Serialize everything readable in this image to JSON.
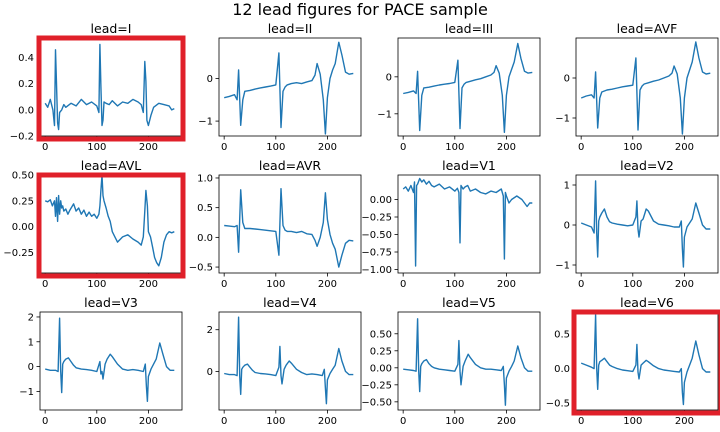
{
  "figure": {
    "title": "12 lead figures for PACE sample",
    "line_color": "#1f77b4",
    "highlight_color": "#e0202a"
  },
  "chart_data": [
    {
      "type": "line",
      "title": "lead=I",
      "highlighted": true,
      "xlim": [
        -10,
        265
      ],
      "ylim": [
        -0.2,
        0.55
      ],
      "xticks": [
        0,
        100,
        200
      ],
      "yticks": [
        -0.2,
        0.0,
        0.2,
        0.4
      ],
      "ytick_labels": [
        "−0.2",
        "0.0",
        "0.2",
        "0.4"
      ],
      "x": [
        0,
        5,
        10,
        15,
        18,
        20,
        22,
        24,
        26,
        28,
        32,
        36,
        40,
        50,
        60,
        70,
        80,
        90,
        100,
        104,
        106,
        108,
        110,
        112,
        114,
        118,
        124,
        130,
        140,
        150,
        160,
        170,
        180,
        186,
        190,
        193,
        195,
        197,
        200,
        205,
        210,
        220,
        230,
        240,
        245,
        250
      ],
      "y": [
        0.05,
        0.02,
        0.08,
        0.0,
        -0.12,
        0.46,
        0.2,
        -0.1,
        -0.15,
        -0.02,
        0.0,
        0.04,
        0.02,
        0.05,
        0.03,
        0.08,
        0.04,
        0.06,
        0.03,
        -0.02,
        0.5,
        0.18,
        -0.12,
        -0.08,
        0.06,
        0.05,
        0.04,
        0.07,
        0.03,
        0.06,
        0.05,
        0.08,
        0.06,
        0.04,
        -0.02,
        0.37,
        0.22,
        -0.08,
        -0.12,
        -0.04,
        0.02,
        0.05,
        0.04,
        0.03,
        0.0,
        0.01
      ]
    },
    {
      "type": "line",
      "title": "lead=II",
      "highlighted": false,
      "xlim": [
        -10,
        265
      ],
      "ylim": [
        -1.35,
        0.95
      ],
      "xticks": [
        0,
        100,
        200
      ],
      "yticks": [
        -1,
        0
      ],
      "ytick_labels": [
        "−1",
        "0"
      ],
      "x": [
        0,
        10,
        20,
        25,
        28,
        32,
        36,
        40,
        50,
        60,
        70,
        80,
        90,
        100,
        106,
        110,
        114,
        118,
        122,
        130,
        140,
        150,
        160,
        170,
        176,
        180,
        186,
        192,
        196,
        200,
        205,
        210,
        215,
        222,
        228,
        235,
        242,
        250
      ],
      "y": [
        -0.45,
        -0.42,
        -0.38,
        -0.5,
        0.2,
        -1.1,
        -0.5,
        -0.3,
        -0.28,
        -0.25,
        -0.22,
        -0.2,
        -0.18,
        -0.15,
        0.6,
        -1.15,
        -0.3,
        -0.2,
        -0.15,
        -0.12,
        -0.1,
        -0.12,
        -0.08,
        -0.05,
        0.08,
        0.35,
        0.1,
        -0.5,
        -1.3,
        -0.45,
        0.0,
        0.2,
        0.35,
        0.85,
        0.55,
        0.15,
        0.1,
        0.12
      ]
    },
    {
      "type": "line",
      "title": "lead=III",
      "highlighted": false,
      "xlim": [
        -10,
        265
      ],
      "ylim": [
        -1.6,
        1.05
      ],
      "xticks": [
        0,
        100,
        200
      ],
      "yticks": [
        -1,
        0
      ],
      "ytick_labels": [
        "−1",
        "0"
      ],
      "x": [
        0,
        10,
        20,
        25,
        28,
        32,
        36,
        40,
        50,
        60,
        70,
        80,
        90,
        100,
        106,
        110,
        114,
        118,
        122,
        130,
        140,
        150,
        160,
        170,
        176,
        180,
        186,
        192,
        196,
        200,
        205,
        210,
        215,
        222,
        228,
        235,
        242,
        250
      ],
      "y": [
        -0.45,
        -0.42,
        -0.38,
        -0.45,
        0.15,
        -1.45,
        -0.5,
        -0.3,
        -0.28,
        -0.25,
        -0.22,
        -0.2,
        -0.18,
        -0.15,
        0.45,
        -1.4,
        -0.3,
        -0.2,
        -0.15,
        -0.12,
        -0.08,
        -0.05,
        0.0,
        0.05,
        0.12,
        0.3,
        0.1,
        -0.5,
        -1.5,
        -0.5,
        0.0,
        0.2,
        0.4,
        0.9,
        0.5,
        0.15,
        0.1,
        0.12
      ]
    },
    {
      "type": "line",
      "title": "lead=AVF",
      "highlighted": false,
      "xlim": [
        -10,
        265
      ],
      "ylim": [
        -1.45,
        1.0
      ],
      "xticks": [
        0,
        100,
        200
      ],
      "yticks": [
        -1,
        0
      ],
      "ytick_labels": [
        "−1",
        "0"
      ],
      "x": [
        0,
        10,
        20,
        25,
        28,
        32,
        36,
        40,
        50,
        60,
        70,
        80,
        90,
        100,
        106,
        110,
        114,
        118,
        122,
        130,
        140,
        150,
        160,
        170,
        176,
        180,
        186,
        192,
        196,
        200,
        205,
        210,
        215,
        222,
        228,
        235,
        242,
        250
      ],
      "y": [
        -0.5,
        -0.45,
        -0.42,
        -0.5,
        0.15,
        -1.25,
        -0.5,
        -0.35,
        -0.3,
        -0.28,
        -0.25,
        -0.22,
        -0.2,
        -0.18,
        0.5,
        -1.3,
        -0.3,
        -0.2,
        -0.15,
        -0.12,
        -0.08,
        -0.05,
        0.0,
        0.05,
        0.12,
        0.3,
        0.1,
        -0.5,
        -1.4,
        -0.5,
        0.0,
        0.2,
        0.4,
        0.9,
        0.5,
        0.15,
        0.1,
        0.12
      ]
    },
    {
      "type": "line",
      "title": "lead=AVL",
      "highlighted": true,
      "xlim": [
        -10,
        265
      ],
      "ylim": [
        -0.45,
        0.5
      ],
      "xticks": [
        0,
        100,
        200
      ],
      "yticks": [
        -0.25,
        0.0,
        0.25,
        0.5
      ],
      "ytick_labels": [
        "−0.25",
        "0.00",
        "0.25",
        "0.50"
      ],
      "x": [
        0,
        5,
        10,
        14,
        18,
        20,
        22,
        24,
        26,
        28,
        30,
        32,
        34,
        36,
        40,
        44,
        48,
        55,
        60,
        65,
        70,
        75,
        80,
        85,
        90,
        95,
        100,
        104,
        106,
        108,
        110,
        112,
        114,
        118,
        122,
        126,
        130,
        135,
        140,
        150,
        160,
        170,
        180,
        186,
        190,
        193,
        195,
        198,
        200,
        204,
        208,
        212,
        216,
        220,
        225,
        230,
        235,
        240,
        245,
        250
      ],
      "y": [
        0.25,
        0.24,
        0.26,
        0.2,
        0.25,
        0.1,
        0.28,
        0.05,
        0.3,
        0.12,
        0.25,
        0.18,
        0.2,
        0.15,
        0.17,
        0.12,
        0.16,
        0.22,
        0.15,
        0.18,
        0.12,
        0.16,
        0.1,
        0.14,
        0.1,
        0.12,
        0.08,
        0.12,
        0.2,
        0.35,
        0.5,
        0.3,
        0.25,
        0.18,
        0.1,
        0.05,
        -0.05,
        -0.1,
        -0.15,
        -0.1,
        -0.08,
        -0.12,
        -0.15,
        -0.18,
        -0.1,
        0.15,
        0.35,
        0.2,
        -0.05,
        -0.1,
        -0.2,
        -0.3,
        -0.35,
        -0.38,
        -0.3,
        -0.15,
        -0.08,
        -0.05,
        -0.06,
        -0.05
      ]
    },
    {
      "type": "line",
      "title": "lead=AVR",
      "highlighted": false,
      "xlim": [
        -10,
        265
      ],
      "ylim": [
        -0.6,
        1.05
      ],
      "xticks": [
        0,
        100,
        200
      ],
      "yticks": [
        -0.5,
        0.0,
        0.5,
        1.0
      ],
      "ytick_labels": [
        "−0.5",
        "0.0",
        "0.5",
        "1.0"
      ],
      "x": [
        0,
        10,
        20,
        25,
        28,
        32,
        36,
        40,
        50,
        60,
        70,
        80,
        90,
        100,
        106,
        110,
        114,
        118,
        122,
        130,
        140,
        150,
        160,
        170,
        176,
        180,
        186,
        192,
        196,
        200,
        205,
        210,
        215,
        222,
        228,
        235,
        242,
        250
      ],
      "y": [
        0.2,
        0.19,
        0.18,
        0.2,
        -0.25,
        0.8,
        0.25,
        0.15,
        0.15,
        0.14,
        0.13,
        0.12,
        0.11,
        0.1,
        -0.3,
        0.82,
        0.2,
        0.12,
        0.1,
        0.1,
        0.08,
        0.1,
        0.06,
        0.05,
        -0.05,
        -0.15,
        0.0,
        0.25,
        0.75,
        0.3,
        0.05,
        -0.1,
        -0.2,
        -0.5,
        -0.3,
        -0.1,
        -0.05,
        -0.06
      ]
    },
    {
      "type": "line",
      "title": "lead=V1",
      "highlighted": false,
      "xlim": [
        -10,
        265
      ],
      "ylim": [
        -1.05,
        0.35
      ],
      "xticks": [
        0,
        100,
        200
      ],
      "yticks": [
        -1.0,
        -0.75,
        -0.5,
        -0.25,
        0.0
      ],
      "ytick_labels": [
        "−1.00",
        "−0.75",
        "−0.50",
        "−0.25",
        "0.00"
      ],
      "x": [
        0,
        5,
        10,
        15,
        20,
        22,
        24,
        26,
        28,
        32,
        36,
        40,
        45,
        50,
        55,
        60,
        70,
        80,
        90,
        100,
        105,
        108,
        110,
        112,
        116,
        120,
        125,
        130,
        140,
        150,
        160,
        170,
        180,
        190,
        194,
        196,
        198,
        200,
        205,
        210,
        220,
        230,
        240,
        245,
        250
      ],
      "y": [
        0.15,
        0.18,
        0.12,
        0.2,
        0.1,
        0.25,
        -0.95,
        0.2,
        0.22,
        0.3,
        0.25,
        0.28,
        0.22,
        0.26,
        0.2,
        0.18,
        0.22,
        0.15,
        0.18,
        0.12,
        0.16,
        0.1,
        -0.62,
        0.2,
        0.15,
        0.18,
        0.2,
        0.12,
        0.15,
        0.1,
        0.08,
        0.12,
        0.1,
        0.15,
        0.05,
        -0.85,
        0.1,
        0.05,
        -0.05,
        0.0,
        0.05,
        0.0,
        -0.1,
        -0.05,
        -0.05
      ]
    },
    {
      "type": "line",
      "title": "lead=V2",
      "highlighted": false,
      "xlim": [
        -10,
        265
      ],
      "ylim": [
        -1.2,
        1.25
      ],
      "xticks": [
        0,
        100,
        200
      ],
      "yticks": [
        -1,
        0,
        1
      ],
      "ytick_labels": [
        "−1",
        "0",
        "1"
      ],
      "x": [
        0,
        10,
        20,
        25,
        28,
        30,
        32,
        34,
        36,
        40,
        45,
        50,
        55,
        60,
        70,
        80,
        90,
        100,
        106,
        108,
        110,
        112,
        116,
        120,
        126,
        130,
        140,
        150,
        160,
        170,
        180,
        190,
        194,
        196,
        198,
        200,
        205,
        210,
        215,
        222,
        228,
        235,
        242,
        250
      ],
      "y": [
        0.05,
        0.0,
        -0.05,
        -0.2,
        1.1,
        -0.2,
        -0.8,
        0.1,
        0.2,
        0.3,
        0.4,
        0.2,
        0.08,
        0.05,
        0.02,
        0.0,
        -0.02,
        0.0,
        0.2,
        0.6,
        -0.1,
        -0.3,
        0.1,
        0.15,
        0.4,
        0.35,
        0.1,
        0.02,
        0.0,
        -0.02,
        -0.05,
        -0.05,
        0.1,
        -0.6,
        -1.05,
        -0.3,
        -0.05,
        0.05,
        0.15,
        0.55,
        0.3,
        0.0,
        -0.1,
        -0.1
      ]
    },
    {
      "type": "line",
      "title": "lead=V3",
      "highlighted": false,
      "xlim": [
        -10,
        265
      ],
      "ylim": [
        -1.75,
        2.2
      ],
      "xticks": [
        0,
        100,
        200
      ],
      "yticks": [
        -1,
        0,
        1,
        2
      ],
      "ytick_labels": [
        "−1",
        "0",
        "1",
        "2"
      ],
      "x": [
        0,
        10,
        20,
        25,
        28,
        30,
        32,
        34,
        36,
        40,
        45,
        50,
        55,
        60,
        70,
        80,
        90,
        100,
        106,
        108,
        110,
        112,
        116,
        120,
        126,
        130,
        140,
        150,
        160,
        170,
        180,
        190,
        194,
        196,
        198,
        200,
        205,
        210,
        215,
        222,
        228,
        235,
        242,
        250
      ],
      "y": [
        -0.1,
        -0.15,
        -0.15,
        -0.2,
        1.95,
        -0.2,
        -1.05,
        0.1,
        0.2,
        0.3,
        0.35,
        0.2,
        0.05,
        -0.05,
        -0.1,
        -0.12,
        -0.15,
        -0.2,
        0.2,
        -0.3,
        -0.2,
        -0.5,
        0.1,
        0.3,
        0.5,
        0.4,
        0.1,
        -0.1,
        -0.15,
        -0.12,
        -0.15,
        -0.2,
        0.1,
        -0.8,
        -1.4,
        -0.4,
        -0.1,
        0.1,
        0.3,
        0.95,
        0.5,
        0.0,
        -0.15,
        -0.15
      ]
    },
    {
      "type": "line",
      "title": "lead=V4",
      "highlighted": false,
      "xlim": [
        -10,
        265
      ],
      "ylim": [
        -1.85,
        2.85
      ],
      "xticks": [
        0,
        100,
        200
      ],
      "yticks": [
        0,
        2
      ],
      "ytick_labels": [
        "0",
        "2"
      ],
      "x": [
        0,
        10,
        20,
        25,
        28,
        30,
        32,
        34,
        36,
        40,
        45,
        50,
        55,
        60,
        70,
        80,
        90,
        100,
        106,
        108,
        110,
        112,
        116,
        120,
        126,
        130,
        140,
        150,
        160,
        170,
        180,
        190,
        194,
        196,
        198,
        200,
        205,
        210,
        215,
        222,
        228,
        235,
        242,
        250
      ],
      "y": [
        -0.1,
        -0.15,
        -0.15,
        -0.2,
        2.6,
        -0.2,
        -1.1,
        0.1,
        0.2,
        0.3,
        0.35,
        0.2,
        0.05,
        -0.05,
        -0.1,
        -0.12,
        -0.15,
        -0.2,
        0.2,
        1.2,
        -0.2,
        -0.6,
        0.1,
        0.3,
        0.5,
        0.4,
        0.1,
        -0.05,
        -0.15,
        -0.12,
        -0.15,
        -0.2,
        0.1,
        -0.8,
        -1.55,
        -0.4,
        -0.1,
        0.1,
        0.3,
        1.1,
        0.5,
        0.0,
        -0.15,
        -0.15
      ]
    },
    {
      "type": "line",
      "title": "lead=V5",
      "highlighted": false,
      "xlim": [
        -10,
        265
      ],
      "ylim": [
        -0.62,
        0.82
      ],
      "xticks": [
        0,
        100,
        200
      ],
      "yticks": [
        -0.5,
        -0.25,
        0.0,
        0.25,
        0.5
      ],
      "ytick_labels": [
        "−0.50",
        "−0.25",
        "0.00",
        "0.25",
        "0.50"
      ],
      "x": [
        0,
        10,
        20,
        25,
        28,
        30,
        32,
        34,
        36,
        40,
        45,
        50,
        55,
        60,
        70,
        80,
        90,
        100,
        106,
        108,
        110,
        112,
        116,
        120,
        126,
        130,
        140,
        150,
        160,
        170,
        180,
        190,
        194,
        196,
        198,
        200,
        205,
        210,
        215,
        222,
        228,
        235,
        242,
        250
      ],
      "y": [
        -0.02,
        -0.03,
        -0.04,
        -0.05,
        0.72,
        -0.05,
        -0.35,
        0.02,
        0.06,
        0.1,
        0.12,
        0.06,
        0.02,
        0.0,
        -0.02,
        -0.03,
        -0.04,
        -0.05,
        0.05,
        0.4,
        -0.05,
        -0.25,
        0.02,
        0.1,
        0.2,
        0.15,
        0.05,
        0.0,
        -0.02,
        -0.02,
        -0.03,
        -0.04,
        0.02,
        -0.25,
        -0.55,
        -0.15,
        -0.05,
        0.02,
        0.1,
        0.32,
        0.15,
        0.0,
        -0.05,
        -0.05
      ]
    },
    {
      "type": "line",
      "title": "lead=V6",
      "highlighted": true,
      "xlim": [
        -10,
        265
      ],
      "ylim": [
        -0.6,
        0.82
      ],
      "xticks": [
        0,
        100,
        200
      ],
      "yticks": [
        -0.5,
        0.0,
        0.5
      ],
      "ytick_labels": [
        "−0.5",
        "0.0",
        "0.5"
      ],
      "x": [
        0,
        10,
        20,
        25,
        28,
        30,
        32,
        34,
        36,
        40,
        45,
        50,
        55,
        60,
        70,
        80,
        90,
        100,
        106,
        108,
        110,
        112,
        116,
        120,
        126,
        130,
        140,
        150,
        160,
        170,
        180,
        190,
        194,
        196,
        198,
        200,
        205,
        210,
        215,
        222,
        228,
        235,
        242,
        250
      ],
      "y": [
        0.08,
        0.05,
        0.02,
        0.0,
        0.78,
        0.0,
        -0.3,
        0.05,
        0.1,
        0.12,
        0.15,
        0.1,
        0.05,
        0.03,
        0.0,
        -0.02,
        -0.03,
        -0.04,
        0.05,
        0.35,
        -0.05,
        -0.15,
        0.05,
        0.08,
        0.12,
        0.1,
        0.04,
        0.0,
        -0.02,
        -0.03,
        -0.04,
        -0.05,
        0.0,
        -0.35,
        -0.52,
        -0.2,
        -0.05,
        0.05,
        0.15,
        0.4,
        0.2,
        0.0,
        -0.05,
        -0.05
      ]
    }
  ]
}
